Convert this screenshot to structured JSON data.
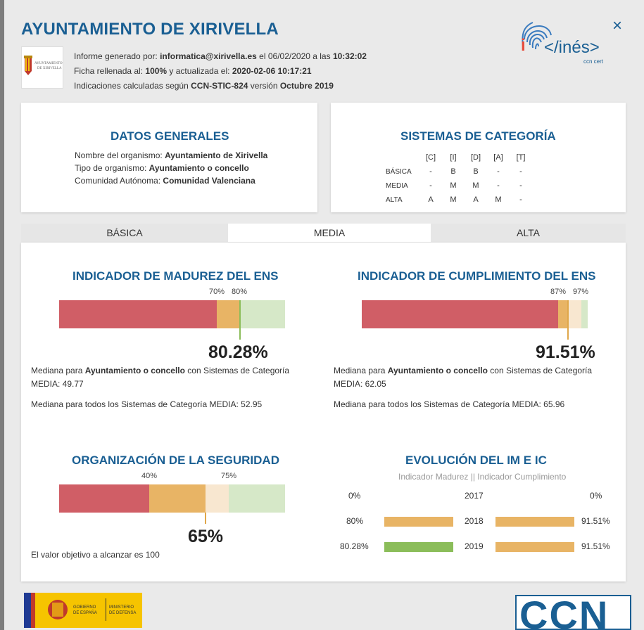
{
  "header": {
    "title": "AYUNTAMIENTO DE XIRIVELLA",
    "close": "×",
    "municipality_logo_text": [
      "AYUNTAMIENTO",
      "DE XIRIVELLA"
    ],
    "info_line1": [
      "Informe generado por: ",
      "informatica@xirivella.es",
      "  el 06/02/2020  a las ",
      "10:32:02"
    ],
    "info_line2": [
      "Ficha rellenada al:  ",
      "100%",
      "  y actualizada el:  ",
      "2020-02-06 10:17:21"
    ],
    "info_line3": [
      "Indicaciones calculadas según  ",
      "CCN-STIC-824",
      "  versión  ",
      "Octubre 2019"
    ],
    "ines_logo": "</inés>",
    "ines_sub": "ccn cert"
  },
  "datos_generales": {
    "title": "DATOS GENERALES",
    "rows": [
      {
        "label": "Nombre del organismo: ",
        "value": "Ayuntamiento de Xirivella"
      },
      {
        "label": "Tipo de organismo: ",
        "value": "Ayuntamiento o concello"
      },
      {
        "label": "Comunidad Autónoma: ",
        "value": "Comunidad Valenciana"
      }
    ]
  },
  "sistemas": {
    "title": "SISTEMAS DE CATEGORÍA",
    "columns": [
      "[C]",
      "[I]",
      "[D]",
      "[A]",
      "[T]"
    ],
    "rows": [
      {
        "level": "BÁSICA",
        "values": [
          "-",
          "B",
          "B",
          "-",
          "-"
        ]
      },
      {
        "level": "MEDIA",
        "values": [
          "-",
          "M",
          "M",
          "-",
          "-"
        ]
      },
      {
        "level": "ALTA",
        "values": [
          "A",
          "M",
          "A",
          "M",
          "-"
        ]
      }
    ]
  },
  "tabs": [
    {
      "label": "BÁSICA",
      "active": false
    },
    {
      "label": "MEDIA",
      "active": true
    },
    {
      "label": "ALTA",
      "active": false
    }
  ],
  "madurez": {
    "title": "INDICADOR DE MADUREZ DEL ENS",
    "thresholds": [
      "70%",
      "80%"
    ],
    "value_text": "80.28%",
    "value": 80.28,
    "note1_a": "Mediana para ",
    "note1_b": "Ayuntamiento o concello",
    "note1_c": "  con Sistemas de Categoría",
    "note1_d": "MEDIA: 49.77",
    "note2": "Mediana para todos los Sistemas de Categoría MEDIA: 52.95"
  },
  "cumplimiento": {
    "title": "INDICADOR DE CUMPLIMIENTO DEL ENS",
    "thresholds": [
      "87%",
      "97%"
    ],
    "value_text": "91.51%",
    "value": 91.51,
    "note1_a": "Mediana para ",
    "note1_b": "Ayuntamiento o concello",
    "note1_c": "  con Sistemas de Categoría",
    "note1_d": "MEDIA: 62.05",
    "note2": "Mediana para todos los Sistemas de Categoría MEDIA: 65.96"
  },
  "organizacion": {
    "title": "ORGANIZACIÓN DE LA SEGURIDAD",
    "thresholds": [
      "40%",
      "75%"
    ],
    "value_text": "65%",
    "value": 65,
    "note": "El valor objetivo a alcanzar es 100"
  },
  "evolucion": {
    "title": "EVOLUCIÓN DEL IM E IC",
    "subtitle": "Indicador Madurez  ||  Indicador Cumplimiento",
    "rows": [
      {
        "year": "2017",
        "im_text": "0%",
        "im": 0,
        "ic_text": "0%",
        "ic": 0,
        "im_color": "#e8b465",
        "ic_color": "#e8b465"
      },
      {
        "year": "2018",
        "im_text": "80%",
        "im": 80,
        "ic_text": "91.51%",
        "ic": 91.51,
        "im_color": "#e8b465",
        "ic_color": "#e8b465"
      },
      {
        "year": "2019",
        "im_text": "80.28%",
        "im": 80.28,
        "ic_text": "91.51%",
        "ic": 91.51,
        "im_color": "#8bbd5a",
        "ic_color": "#e8b465"
      }
    ]
  },
  "colors": {
    "red": "#d05e66",
    "orange": "#e8b465",
    "cream": "#f8e7d0",
    "light_green": "#d6e8c8",
    "green_marker": "#8bbd5a",
    "orange_marker": "#e0a74a",
    "title_blue": "#1a5f93"
  },
  "footer": {
    "gobierno": [
      "GOBIERNO",
      "DE ESPAÑA"
    ],
    "ministerio": [
      "MINISTERIO",
      "DE DEFENSA"
    ],
    "ccn": "CCN"
  }
}
